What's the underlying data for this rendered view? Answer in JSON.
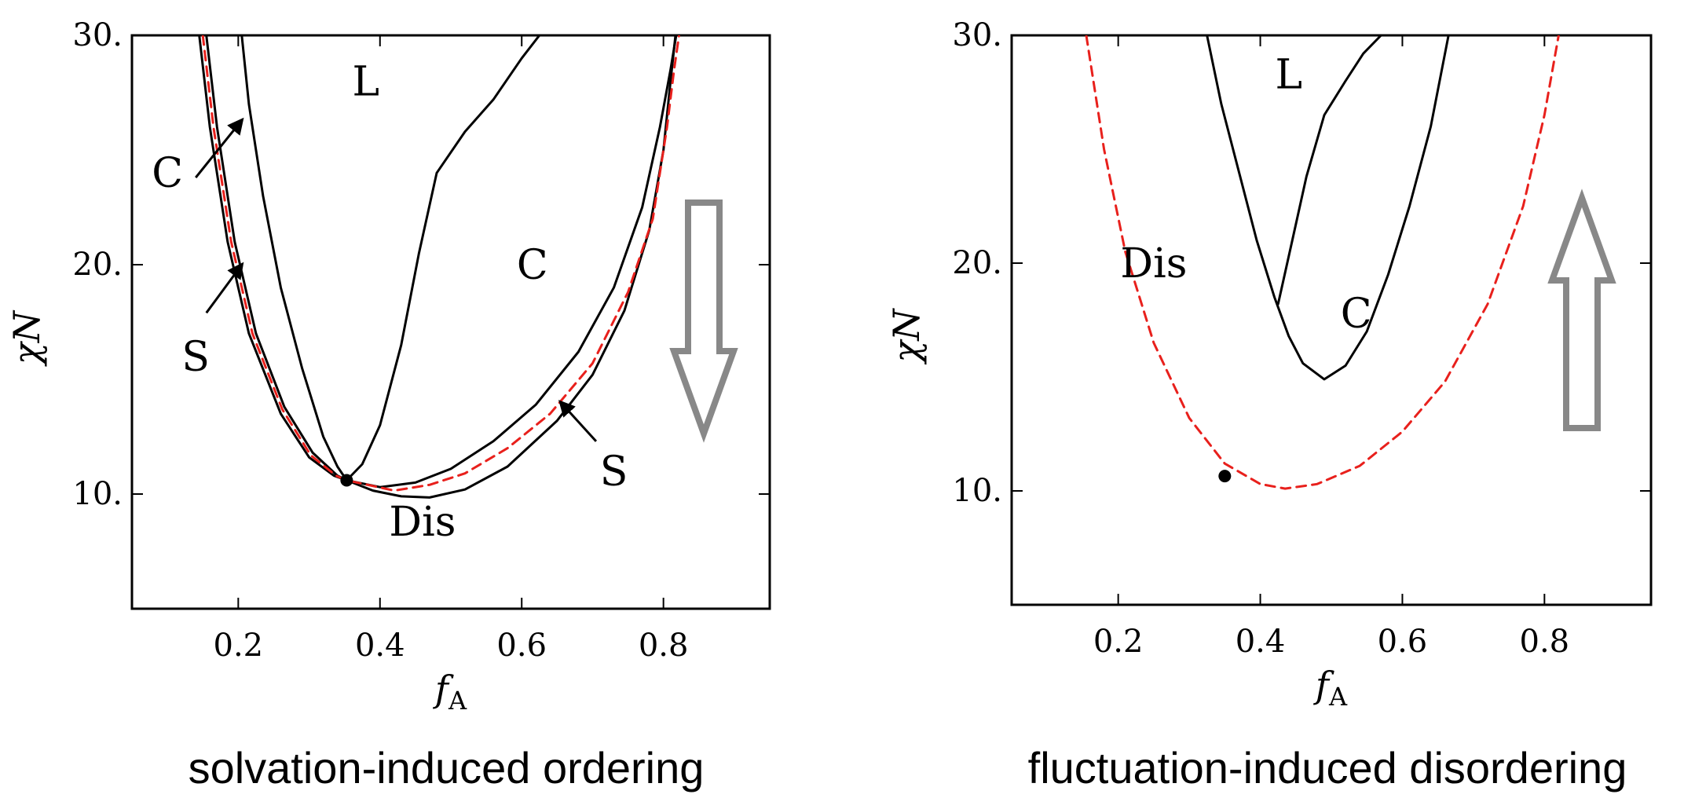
{
  "chart_data": [
    {
      "type": "line",
      "caption": "solvation-induced ordering",
      "xlabel": "f",
      "xlabel_sub": "A",
      "ylabel": "χN",
      "xlim": [
        0.05,
        0.95
      ],
      "ylim": [
        5,
        30
      ],
      "xticks": [
        0.2,
        0.4,
        0.6,
        0.8
      ],
      "xtick_labels": [
        "0.2",
        "0.4",
        "0.6",
        "0.8"
      ],
      "yticks": [
        10,
        20,
        30
      ],
      "ytick_labels": [
        "10.",
        "20.",
        "30."
      ],
      "arrow_direction": "down",
      "colors": {
        "phase_boundary": "#000000",
        "spinodal": "#e8201c",
        "arrow": "#888888"
      },
      "series": [
        {
          "style": "solid",
          "points": [
            [
              0.145,
              30
            ],
            [
              0.16,
              26
            ],
            [
              0.185,
              21
            ],
            [
              0.215,
              17
            ],
            [
              0.26,
              13.5
            ],
            [
              0.3,
              11.6
            ],
            [
              0.335,
              10.8
            ],
            [
              0.353,
              10.6
            ],
            [
              0.39,
              10.15
            ],
            [
              0.43,
              9.9
            ],
            [
              0.47,
              9.85
            ],
            [
              0.52,
              10.2
            ],
            [
              0.58,
              11.2
            ],
            [
              0.65,
              13.2
            ],
            [
              0.7,
              15.2
            ],
            [
              0.745,
              18
            ],
            [
              0.78,
              21.5
            ],
            [
              0.8,
              25
            ],
            [
              0.81,
              28
            ],
            [
              0.817,
              30
            ]
          ]
        },
        {
          "style": "solid",
          "points": [
            [
              0.155,
              30
            ],
            [
              0.17,
              26
            ],
            [
              0.195,
              21
            ],
            [
              0.225,
              17
            ],
            [
              0.265,
              13.8
            ],
            [
              0.305,
              11.8
            ],
            [
              0.34,
              10.8
            ],
            [
              0.353,
              10.6
            ],
            [
              0.4,
              10.3
            ],
            [
              0.45,
              10.5
            ],
            [
              0.5,
              11.1
            ],
            [
              0.56,
              12.3
            ],
            [
              0.62,
              13.9
            ],
            [
              0.68,
              16.2
            ],
            [
              0.73,
              19
            ],
            [
              0.77,
              22.5
            ],
            [
              0.795,
              26
            ],
            [
              0.81,
              28.5
            ],
            [
              0.818,
              30
            ]
          ]
        },
        {
          "style": "dashed",
          "points": [
            [
              0.15,
              30
            ],
            [
              0.165,
              26
            ],
            [
              0.19,
              21
            ],
            [
              0.22,
              17
            ],
            [
              0.262,
              13.7
            ],
            [
              0.302,
              11.7
            ],
            [
              0.338,
              10.8
            ],
            [
              0.353,
              10.6
            ],
            [
              0.42,
              10.15
            ],
            [
              0.47,
              10.4
            ],
            [
              0.52,
              10.9
            ],
            [
              0.58,
              12
            ],
            [
              0.64,
              13.5
            ],
            [
              0.7,
              15.7
            ],
            [
              0.75,
              18.8
            ],
            [
              0.785,
              22
            ],
            [
              0.805,
              26
            ],
            [
              0.815,
              28.5
            ],
            [
              0.822,
              30
            ]
          ]
        },
        {
          "style": "solid",
          "points": [
            [
              0.205,
              30
            ],
            [
              0.215,
              27
            ],
            [
              0.235,
              23
            ],
            [
              0.26,
              19
            ],
            [
              0.29,
              15.5
            ],
            [
              0.32,
              12.5
            ],
            [
              0.34,
              11.2
            ],
            [
              0.353,
              10.6
            ]
          ]
        },
        {
          "style": "solid",
          "points": [
            [
              0.353,
              10.6
            ],
            [
              0.375,
              11.3
            ],
            [
              0.4,
              13
            ],
            [
              0.43,
              16.5
            ],
            [
              0.455,
              20.5
            ],
            [
              0.48,
              24
            ],
            [
              0.52,
              25.8
            ],
            [
              0.56,
              27.2
            ],
            [
              0.6,
              29
            ],
            [
              0.625,
              30
            ]
          ]
        }
      ],
      "critical_point": [
        0.353,
        10.6
      ],
      "labels": [
        {
          "text": "L",
          "x": 0.38,
          "y": 28
        },
        {
          "text": "C",
          "x": 0.615,
          "y": 20
        },
        {
          "text": "C",
          "x": 0.1,
          "y": 24
        },
        {
          "text": "S",
          "x": 0.14,
          "y": 16
        },
        {
          "text": "S",
          "x": 0.73,
          "y": 11
        },
        {
          "text": "Dis",
          "x": 0.46,
          "y": 8.8
        }
      ],
      "annotation_arrows": [
        {
          "from": [
            0.14,
            23.8
          ],
          "to": [
            0.205,
            26.3
          ]
        },
        {
          "from": [
            0.155,
            17.9
          ],
          "to": [
            0.205,
            20
          ]
        },
        {
          "from": [
            0.705,
            12.3
          ],
          "to": [
            0.655,
            14
          ]
        }
      ]
    },
    {
      "type": "line",
      "caption": "fluctuation-induced disordering",
      "xlabel": "f",
      "xlabel_sub": "A",
      "ylabel": "χN",
      "xlim": [
        0.05,
        0.95
      ],
      "ylim": [
        5,
        30
      ],
      "xticks": [
        0.2,
        0.4,
        0.6,
        0.8
      ],
      "xtick_labels": [
        "0.2",
        "0.4",
        "0.6",
        "0.8"
      ],
      "yticks": [
        10,
        20,
        30
      ],
      "ytick_labels": [
        "10.",
        "20.",
        "30."
      ],
      "arrow_direction": "up",
      "colors": {
        "phase_boundary": "#000000",
        "spinodal": "#e8201c",
        "arrow": "#888888"
      },
      "series": [
        {
          "style": "dashed",
          "points": [
            [
              0.155,
              30
            ],
            [
              0.18,
              25
            ],
            [
              0.21,
              20.5
            ],
            [
              0.25,
              16.5
            ],
            [
              0.3,
              13.2
            ],
            [
              0.35,
              11.2
            ],
            [
              0.4,
              10.3
            ],
            [
              0.435,
              10.1
            ],
            [
              0.48,
              10.3
            ],
            [
              0.54,
              11.1
            ],
            [
              0.6,
              12.6
            ],
            [
              0.66,
              14.8
            ],
            [
              0.72,
              18.2
            ],
            [
              0.77,
              22.5
            ],
            [
              0.8,
              26.5
            ],
            [
              0.82,
              30
            ]
          ]
        },
        {
          "style": "solid",
          "points": [
            [
              0.325,
              30
            ],
            [
              0.345,
              27
            ],
            [
              0.37,
              24
            ],
            [
              0.395,
              21
            ],
            [
              0.42,
              18.5
            ],
            [
              0.44,
              16.8
            ],
            [
              0.46,
              15.6
            ],
            [
              0.49,
              14.9
            ],
            [
              0.52,
              15.5
            ],
            [
              0.55,
              17
            ],
            [
              0.58,
              19.5
            ],
            [
              0.61,
              22.5
            ],
            [
              0.64,
              26
            ],
            [
              0.665,
              30
            ]
          ]
        },
        {
          "style": "solid",
          "points": [
            [
              0.425,
              18.2
            ],
            [
              0.445,
              21
            ],
            [
              0.465,
              23.8
            ],
            [
              0.49,
              26.5
            ],
            [
              0.52,
              28
            ],
            [
              0.545,
              29.2
            ],
            [
              0.57,
              30
            ]
          ]
        }
      ],
      "critical_point": [
        0.35,
        10.65
      ],
      "labels": [
        {
          "text": "L",
          "x": 0.44,
          "y": 28.3
        },
        {
          "text": "C",
          "x": 0.535,
          "y": 17.8
        },
        {
          "text": "Dis",
          "x": 0.25,
          "y": 20
        }
      ],
      "annotation_arrows": []
    }
  ]
}
